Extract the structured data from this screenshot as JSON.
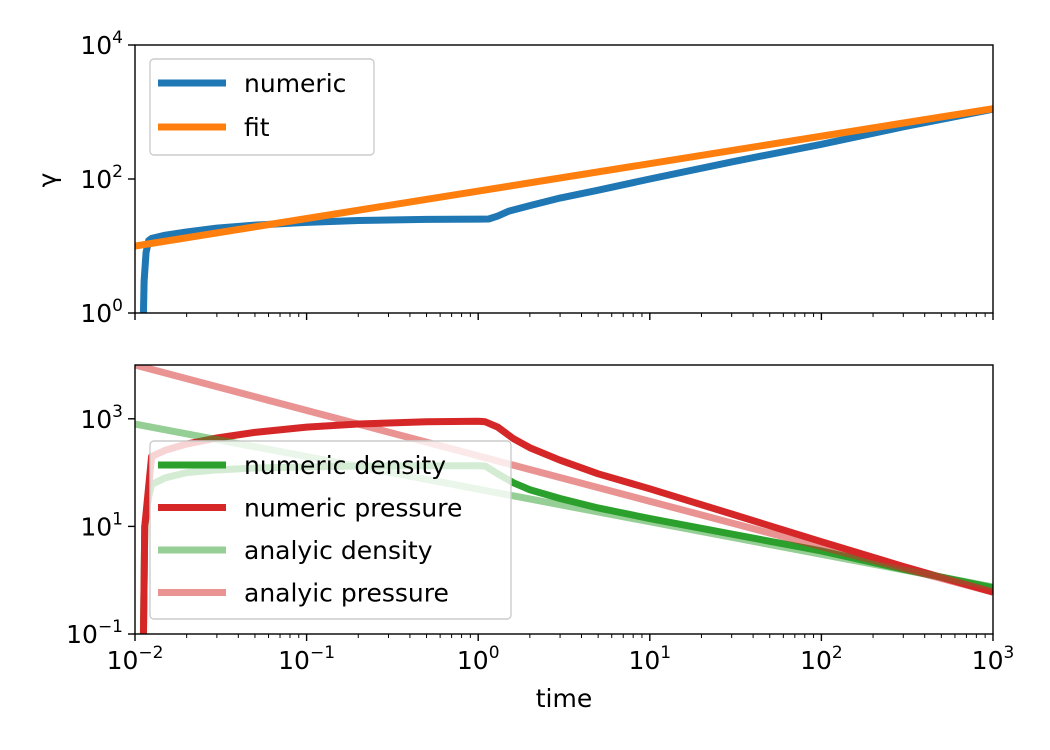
{
  "chart_data": [
    {
      "type": "line",
      "panel": "top",
      "ylabel": "γ",
      "xlabel": "",
      "xscale": "log",
      "yscale": "log",
      "xlim": [
        0.01,
        1000
      ],
      "ylim": [
        1,
        10000
      ],
      "yticks": [
        {
          "value": 1,
          "base": "10",
          "exp": "0"
        },
        {
          "value": 100,
          "base": "10",
          "exp": "2"
        },
        {
          "value": 10000,
          "base": "10",
          "exp": "4"
        }
      ],
      "legend_position": "upper-left",
      "series": [
        {
          "name": "numeric",
          "color": "#1f77b4",
          "alpha": 1,
          "x": [
            0.0112,
            0.0113,
            0.0116,
            0.012,
            0.0125,
            0.015,
            0.02,
            0.03,
            0.05,
            0.1,
            0.2,
            0.5,
            1.0,
            1.15,
            1.3,
            1.5,
            2,
            3,
            5,
            10,
            30,
            100,
            300,
            1000
          ],
          "y": [
            1,
            3,
            8,
            12,
            13,
            14.5,
            16.2,
            18.5,
            20.5,
            22.5,
            24,
            25,
            25.2,
            25.3,
            28,
            33,
            40,
            52,
            68,
            100,
            180,
            330,
            600,
            1100
          ]
        },
        {
          "name": "fit",
          "color": "#ff7f0e",
          "alpha": 1,
          "x": [
            0.01,
            1000
          ],
          "y": [
            10,
            1120
          ]
        }
      ]
    },
    {
      "type": "line",
      "panel": "bottom",
      "xlabel": "time",
      "ylabel": "",
      "xscale": "log",
      "yscale": "log",
      "xlim": [
        0.01,
        1000
      ],
      "ylim": [
        0.1,
        10000
      ],
      "xticks": [
        {
          "value": 0.01,
          "base": "10",
          "exp": "−2"
        },
        {
          "value": 0.1,
          "base": "10",
          "exp": "−1"
        },
        {
          "value": 1,
          "base": "10",
          "exp": "0"
        },
        {
          "value": 10,
          "base": "10",
          "exp": "1"
        },
        {
          "value": 100,
          "base": "10",
          "exp": "2"
        },
        {
          "value": 1000,
          "base": "10",
          "exp": "3"
        }
      ],
      "yticks": [
        {
          "value": 0.1,
          "base": "10",
          "exp": "−1"
        },
        {
          "value": 10,
          "base": "10",
          "exp": "1"
        },
        {
          "value": 1000,
          "base": "10",
          "exp": "3"
        }
      ],
      "legend_position": "lower-left",
      "series": [
        {
          "name": "numeric density",
          "color": "#2ca02c",
          "alpha": 1,
          "x": [
            0.0112,
            0.0114,
            0.012,
            0.0125,
            0.015,
            0.02,
            0.03,
            0.05,
            0.1,
            0.2,
            0.5,
            1.0,
            1.1,
            1.3,
            1.6,
            2,
            3,
            5,
            10,
            30,
            100,
            300,
            1000
          ],
          "y": [
            0.1,
            10,
            35,
            60,
            80,
            100,
            112,
            122,
            128,
            132,
            134,
            134,
            132,
            95,
            65,
            48,
            33,
            22,
            14,
            7.2,
            3.5,
            1.6,
            0.72
          ]
        },
        {
          "name": "numeric pressure",
          "color": "#d62728",
          "alpha": 1,
          "x": [
            0.0112,
            0.0114,
            0.0125,
            0.015,
            0.02,
            0.03,
            0.05,
            0.1,
            0.2,
            0.5,
            1.0,
            1.1,
            1.3,
            1.6,
            2,
            3,
            5,
            10,
            30,
            100,
            300,
            1000
          ],
          "y": [
            0.1,
            10,
            200,
            260,
            340,
            440,
            560,
            700,
            800,
            880,
            900,
            880,
            700,
            430,
            290,
            170,
            95,
            50,
            17,
            5.2,
            1.8,
            0.6
          ]
        },
        {
          "name": "analyic density",
          "color": "#2ca02c",
          "alpha": 0.5,
          "x": [
            0.01,
            1000
          ],
          "y": [
            800,
            0.75
          ]
        },
        {
          "name": "analyic pressure",
          "color": "#d62728",
          "alpha": 0.5,
          "x": [
            0.01,
            1000
          ],
          "y": [
            10000,
            0.6
          ]
        }
      ]
    }
  ]
}
